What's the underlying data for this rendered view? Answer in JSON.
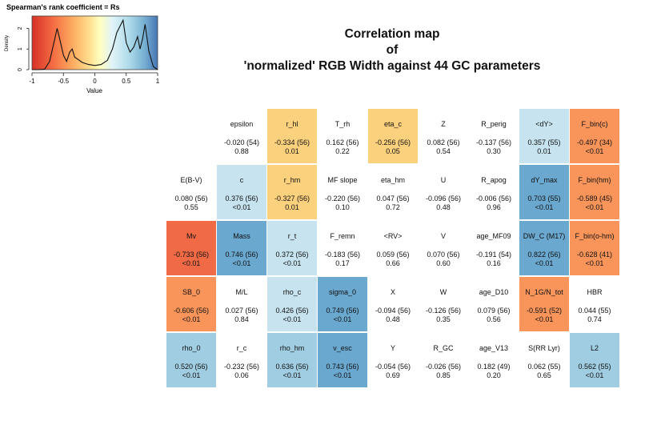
{
  "legend": {
    "title": "Spearman's rank coefficient = Rs",
    "ylabel": "Density",
    "xlabel": "Value",
    "xticks": [
      "-1",
      "-0.5",
      "0",
      "0.5",
      "1"
    ],
    "yticks": [
      "0",
      "1",
      "2"
    ]
  },
  "title": {
    "line1": "Correlation map",
    "line2": "of",
    "line3": "'normalized' RGB Width against 44 GC parameters"
  },
  "colors": {
    "strong_neg": "#ef6a45",
    "mid_neg": "#f9955a",
    "weak_neg": "#fcd17e",
    "weak_pos": "#c6e3ef",
    "mid_pos": "#a0cde2",
    "strong_pos": "#6ba8cf",
    "none": "#ffffff"
  },
  "chart_data": {
    "type": "heatmap",
    "title": "Correlation map of 'normalized' RGB Width against 44 GC parameters",
    "value_label": "Spearman's rank coefficient = Rs",
    "range": [
      -1,
      1
    ],
    "rows": [
      [
        null,
        {
          "name": "epsilon",
          "rho": "-0.020 (54)",
          "p": "0.88",
          "value": -0.02,
          "shade": "none"
        },
        {
          "name": "r_hl",
          "rho": "-0.334 (56)",
          "p": "0.01",
          "value": -0.334,
          "shade": "weak_neg"
        },
        {
          "name": "T_rh",
          "rho": "0.162 (56)",
          "p": "0.22",
          "value": 0.162,
          "shade": "none"
        },
        {
          "name": "eta_c",
          "rho": "-0.256 (56)",
          "p": "0.05",
          "value": -0.256,
          "shade": "weak_neg"
        },
        {
          "name": "Z",
          "rho": "0.082 (56)",
          "p": "0.54",
          "value": 0.082,
          "shade": "none"
        },
        {
          "name": "R_perig",
          "rho": "-0.137 (56)",
          "p": "0.30",
          "value": -0.137,
          "shade": "none"
        },
        {
          "name": "<dY>",
          "rho": "0.357 (55)",
          "p": "0.01",
          "value": 0.357,
          "shade": "weak_pos"
        },
        {
          "name": "F_bin(c)",
          "rho": "-0.497 (34)",
          "p": "<0.01",
          "value": -0.497,
          "shade": "mid_neg"
        }
      ],
      [
        {
          "name": "E(B-V)",
          "rho": "0.080 (56)",
          "p": "0.55",
          "value": 0.08,
          "shade": "none"
        },
        {
          "name": "c",
          "rho": "0.376 (56)",
          "p": "<0.01",
          "value": 0.376,
          "shade": "weak_pos"
        },
        {
          "name": "r_hm",
          "rho": "-0.327 (56)",
          "p": "0.01",
          "value": -0.327,
          "shade": "weak_neg"
        },
        {
          "name": "MF slope",
          "rho": "-0.220 (56)",
          "p": "0.10",
          "value": -0.22,
          "shade": "none"
        },
        {
          "name": "eta_hm",
          "rho": "0.047 (56)",
          "p": "0.72",
          "value": 0.047,
          "shade": "none"
        },
        {
          "name": "U",
          "rho": "-0.096 (56)",
          "p": "0.48",
          "value": -0.096,
          "shade": "none"
        },
        {
          "name": "R_apog",
          "rho": "-0.006 (56)",
          "p": "0.96",
          "value": -0.006,
          "shade": "none"
        },
        {
          "name": "dY_max",
          "rho": "0.703 (55)",
          "p": "<0.01",
          "value": 0.703,
          "shade": "strong_pos"
        },
        {
          "name": "F_bin(hm)",
          "rho": "-0.589 (45)",
          "p": "<0.01",
          "value": -0.589,
          "shade": "mid_neg"
        }
      ],
      [
        {
          "name": "Mv",
          "rho": "-0.733 (56)",
          "p": "<0.01",
          "value": -0.733,
          "shade": "strong_neg"
        },
        {
          "name": "Mass",
          "rho": "0.746 (56)",
          "p": "<0.01",
          "value": 0.746,
          "shade": "strong_pos"
        },
        {
          "name": "r_t",
          "rho": "0.372 (56)",
          "p": "<0.01",
          "value": 0.372,
          "shade": "weak_pos"
        },
        {
          "name": "F_remn",
          "rho": "-0.183 (56)",
          "p": "0.17",
          "value": -0.183,
          "shade": "none"
        },
        {
          "name": "<RV>",
          "rho": "0.059 (56)",
          "p": "0.66",
          "value": 0.059,
          "shade": "none"
        },
        {
          "name": "V",
          "rho": "0.070 (56)",
          "p": "0.60",
          "value": 0.07,
          "shade": "none"
        },
        {
          "name": "age_MF09",
          "rho": "-0.191 (54)",
          "p": "0.16",
          "value": -0.191,
          "shade": "none"
        },
        {
          "name": "DW_C (M17)",
          "rho": "0.822 (56)",
          "p": "<0.01",
          "value": 0.822,
          "shade": "strong_pos"
        },
        {
          "name": "F_bin(o-hm)",
          "rho": "-0.628 (41)",
          "p": "<0.01",
          "value": -0.628,
          "shade": "mid_neg"
        }
      ],
      [
        {
          "name": "SB_0",
          "rho": "-0.606 (56)",
          "p": "<0.01",
          "value": -0.606,
          "shade": "mid_neg"
        },
        {
          "name": "M/L",
          "rho": "0.027 (56)",
          "p": "0.84",
          "value": 0.027,
          "shade": "none"
        },
        {
          "name": "rho_c",
          "rho": "0.426 (56)",
          "p": "<0.01",
          "value": 0.426,
          "shade": "weak_pos"
        },
        {
          "name": "sigma_0",
          "rho": "0.749 (56)",
          "p": "<0.01",
          "value": 0.749,
          "shade": "strong_pos"
        },
        {
          "name": "X",
          "rho": "-0.094 (56)",
          "p": "0.48",
          "value": -0.094,
          "shade": "none"
        },
        {
          "name": "W",
          "rho": "-0.126 (56)",
          "p": "0.35",
          "value": -0.126,
          "shade": "none"
        },
        {
          "name": "age_D10",
          "rho": "0.079 (56)",
          "p": "0.56",
          "value": 0.079,
          "shade": "none"
        },
        {
          "name": "N_1G/N_tot",
          "rho": "-0.591 (52)",
          "p": "<0.01",
          "value": -0.591,
          "shade": "mid_neg"
        },
        {
          "name": "HBR",
          "rho": "0.044 (55)",
          "p": "0.74",
          "value": 0.044,
          "shade": "none"
        }
      ],
      [
        {
          "name": "rho_0",
          "rho": "0.520 (56)",
          "p": "<0.01",
          "value": 0.52,
          "shade": "mid_pos"
        },
        {
          "name": "r_c",
          "rho": "-0.232 (56)",
          "p": "0.06",
          "value": -0.232,
          "shade": "none"
        },
        {
          "name": "rho_hm",
          "rho": "0.636 (56)",
          "p": "<0.01",
          "value": 0.636,
          "shade": "mid_pos"
        },
        {
          "name": "v_esc",
          "rho": "0.743 (56)",
          "p": "<0.01",
          "value": 0.743,
          "shade": "strong_pos"
        },
        {
          "name": "Y",
          "rho": "-0.054 (56)",
          "p": "0.69",
          "value": -0.054,
          "shade": "none"
        },
        {
          "name": "R_GC",
          "rho": "-0.026 (56)",
          "p": "0.85",
          "value": -0.026,
          "shade": "none"
        },
        {
          "name": "age_V13",
          "rho": "0.182 (49)",
          "p": "0.20",
          "value": 0.182,
          "shade": "none"
        },
        {
          "name": "S(RR Lyr)",
          "rho": "0.062 (55)",
          "p": "0.65",
          "value": 0.062,
          "shade": "none"
        },
        {
          "name": "L2",
          "rho": "0.562 (55)",
          "p": "<0.01",
          "value": 0.562,
          "shade": "mid_pos"
        }
      ]
    ],
    "density_curve": {
      "x": [
        -1,
        -0.9,
        -0.8,
        -0.72,
        -0.66,
        -0.6,
        -0.56,
        -0.5,
        -0.45,
        -0.4,
        -0.36,
        -0.32,
        -0.27,
        -0.2,
        -0.1,
        0,
        0.1,
        0.2,
        0.28,
        0.35,
        0.4,
        0.45,
        0.5,
        0.56,
        0.62,
        0.68,
        0.72,
        0.76,
        0.8,
        0.86,
        0.93,
        1
      ],
      "y": [
        0,
        0,
        0.02,
        0.4,
        1.2,
        2.0,
        1.5,
        0.7,
        0.4,
        0.85,
        1.0,
        0.6,
        0.5,
        0.35,
        0.25,
        0.2,
        0.25,
        0.45,
        1.0,
        1.8,
        2.1,
        2.4,
        1.3,
        0.85,
        1.1,
        1.6,
        1.0,
        1.5,
        2.2,
        0.9,
        0.15,
        0
      ]
    }
  }
}
